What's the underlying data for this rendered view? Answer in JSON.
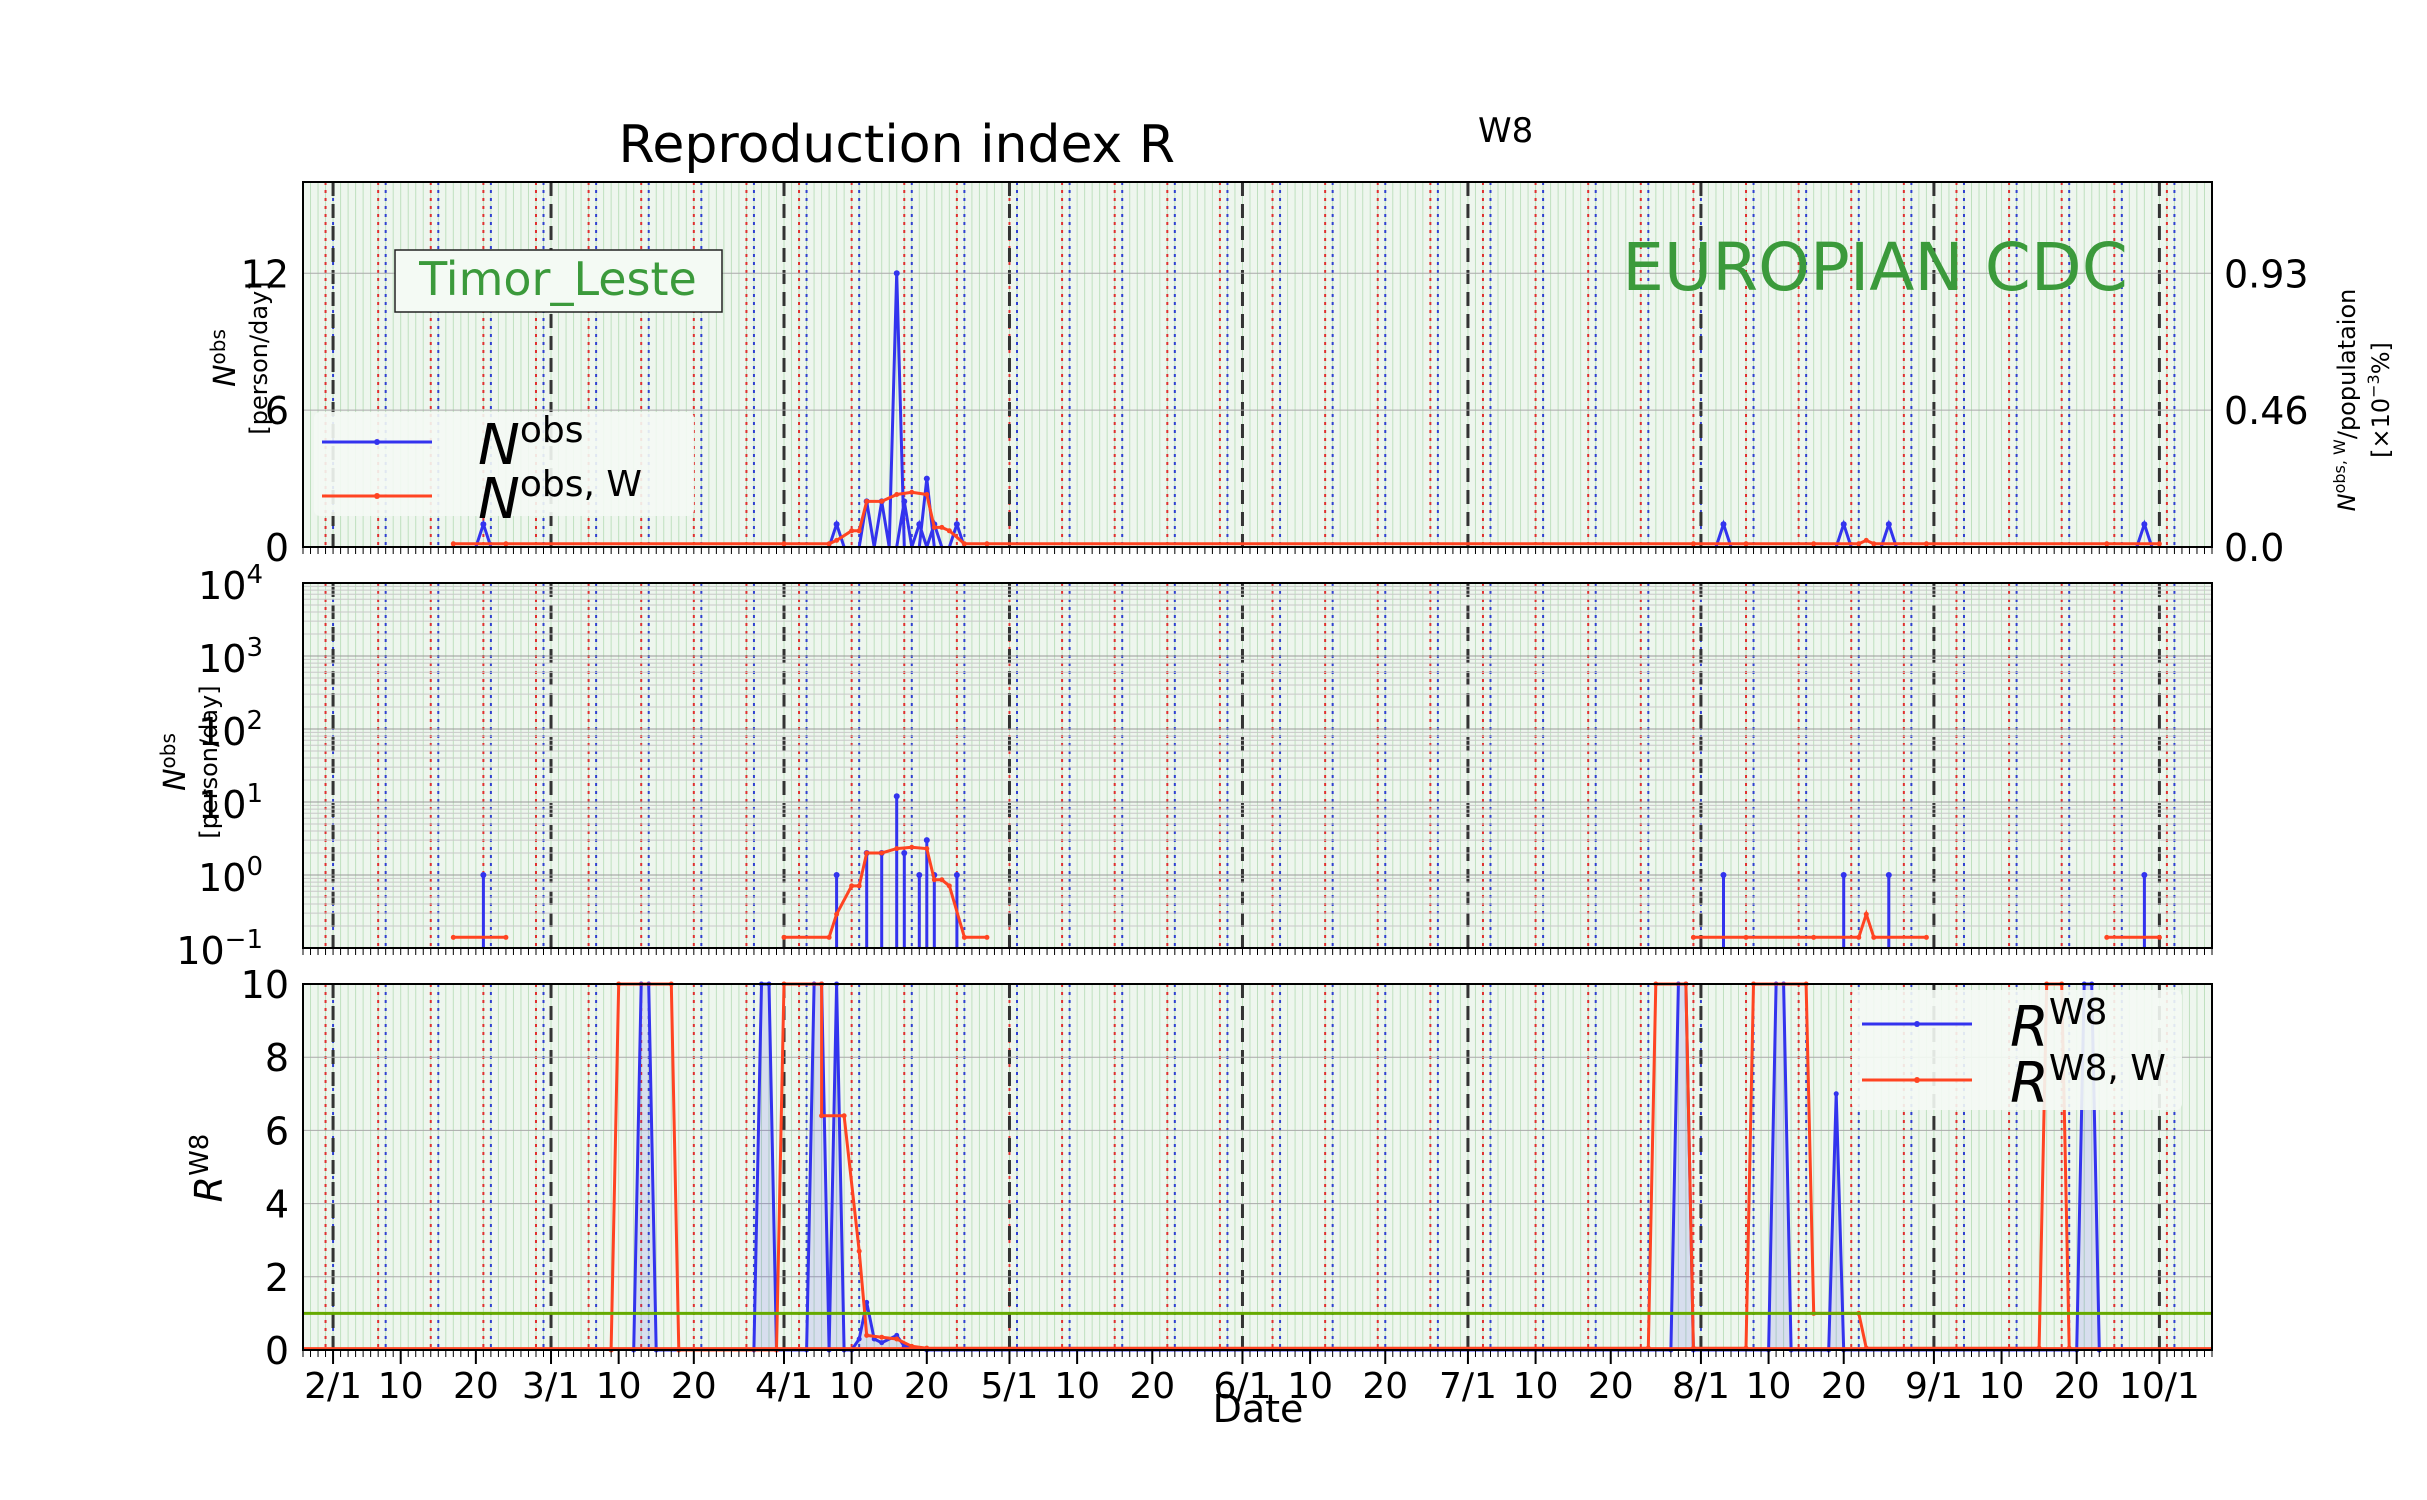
{
  "chart_data": {
    "type": "line",
    "title": "Reproduction index R",
    "title_sup": "W8",
    "xlabel": "Date",
    "x_tick_labels": [
      "2/1",
      "10",
      "20",
      "3/1",
      "10",
      "20",
      "4/1",
      "10",
      "20",
      "5/1",
      "10",
      "20",
      "6/1",
      "10",
      "20",
      "7/1",
      "10",
      "20",
      "8/1",
      "10",
      "20",
      "9/1",
      "10",
      "20",
      "10/1"
    ],
    "panels": [
      {
        "id": "linear",
        "ylabel": "N",
        "ylabel_sup": "obs",
        "ylabel_unit": "[person/day]",
        "ylim": [
          0,
          16
        ],
        "yticks": [
          "0",
          "6",
          "12"
        ],
        "right_axis_label": "N",
        "right_axis_label_sup": "obs, W",
        "right_axis_label_rest": "/populataion",
        "right_axis_unit": "[×10",
        "right_axis_unit_sup": "−3",
        "right_axis_unit_end": "%]",
        "right_yticks": [
          "0.0",
          "0.46",
          "0.93"
        ],
        "country_label": "Timor_Leste",
        "source_label": "EUROPIAN CDC",
        "legend": [
          {
            "base": "N",
            "sup": "obs",
            "color": "#3333ee"
          },
          {
            "base": "N",
            "sup": "obs, W",
            "color": "#ff4422"
          }
        ]
      },
      {
        "id": "log",
        "ylabel": "N",
        "ylabel_sup": "obs",
        "ylabel_unit": "[person/day]",
        "yscale": "log",
        "ylim": [
          0.1,
          10000
        ],
        "yticks": [
          {
            "base": "10",
            "sup": "−1"
          },
          {
            "base": "10",
            "sup": "0"
          },
          {
            "base": "10",
            "sup": "1"
          },
          {
            "base": "10",
            "sup": "2"
          },
          {
            "base": "10",
            "sup": "3"
          },
          {
            "base": "10",
            "sup": "4"
          }
        ]
      },
      {
        "id": "R",
        "ylabel": "R",
        "ylabel_sup": "W8",
        "ylim": [
          0,
          10
        ],
        "yticks": [
          "0",
          "2",
          "4",
          "6",
          "8",
          "10"
        ],
        "reference_line": 1,
        "legend": [
          {
            "base": "R",
            "sup": "W8",
            "color": "#3333ee"
          },
          {
            "base": "R",
            "sup": "W8, W",
            "color": "#ff4422"
          }
        ]
      }
    ],
    "series": [
      {
        "name": "N obs",
        "color": "#3333ee",
        "points": [
          [
            "2020-02-21",
            1
          ],
          [
            "2020-04-08",
            1
          ],
          [
            "2020-04-12",
            2
          ],
          [
            "2020-04-14",
            2
          ],
          [
            "2020-04-16",
            12
          ],
          [
            "2020-04-17",
            2
          ],
          [
            "2020-04-19",
            1
          ],
          [
            "2020-04-20",
            3
          ],
          [
            "2020-04-21",
            1
          ],
          [
            "2020-04-24",
            1
          ],
          [
            "2020-08-04",
            1
          ],
          [
            "2020-08-20",
            1
          ],
          [
            "2020-08-26",
            1
          ],
          [
            "2020-09-29",
            1
          ]
        ]
      },
      {
        "name": "N obs, W",
        "color": "#ff4422",
        "points": [
          [
            "2020-02-17",
            0.14
          ],
          [
            "2020-02-24",
            0.14
          ],
          [
            "2020-04-01",
            0.14
          ],
          [
            "2020-04-07",
            0.14
          ],
          [
            "2020-04-08",
            0.29
          ],
          [
            "2020-04-10",
            0.71
          ],
          [
            "2020-04-11",
            0.71
          ],
          [
            "2020-04-12",
            2.0
          ],
          [
            "2020-04-14",
            2.0
          ],
          [
            "2020-04-16",
            2.3
          ],
          [
            "2020-04-18",
            2.4
          ],
          [
            "2020-04-20",
            2.3
          ],
          [
            "2020-04-21",
            0.86
          ],
          [
            "2020-04-22",
            0.86
          ],
          [
            "2020-04-23",
            0.71
          ],
          [
            "2020-04-25",
            0.14
          ],
          [
            "2020-04-28",
            0.14
          ],
          [
            "2020-07-31",
            0.14
          ],
          [
            "2020-08-07",
            0.14
          ],
          [
            "2020-08-16",
            0.14
          ],
          [
            "2020-08-22",
            0.14
          ],
          [
            "2020-08-23",
            0.29
          ],
          [
            "2020-08-24",
            0.14
          ],
          [
            "2020-08-31",
            0.14
          ],
          [
            "2020-09-24",
            0.14
          ],
          [
            "2020-10-01",
            0.14
          ]
        ]
      },
      {
        "name": "R W8",
        "color": "#3333ee",
        "points": [
          [
            "2020-03-12",
            0
          ],
          [
            "2020-03-13",
            10
          ],
          [
            "2020-03-14",
            10
          ],
          [
            "2020-03-15",
            0
          ],
          [
            "2020-03-28",
            0
          ],
          [
            "2020-03-29",
            10
          ],
          [
            "2020-03-30",
            10
          ],
          [
            "2020-03-31",
            0
          ],
          [
            "2020-04-04",
            0
          ],
          [
            "2020-04-05",
            10
          ],
          [
            "2020-04-06",
            10
          ],
          [
            "2020-04-07",
            0
          ],
          [
            "2020-04-08",
            10
          ],
          [
            "2020-04-09",
            0
          ],
          [
            "2020-04-10",
            0
          ],
          [
            "2020-04-11",
            0.3
          ],
          [
            "2020-04-12",
            1.3
          ],
          [
            "2020-04-13",
            0.3
          ],
          [
            "2020-04-14",
            0.2
          ],
          [
            "2020-04-16",
            0.4
          ],
          [
            "2020-04-17",
            0.1
          ],
          [
            "2020-04-20",
            0
          ],
          [
            "2020-07-28",
            0
          ],
          [
            "2020-07-29",
            10
          ],
          [
            "2020-07-30",
            10
          ],
          [
            "2020-07-31",
            0
          ],
          [
            "2020-08-10",
            0
          ],
          [
            "2020-08-11",
            10
          ],
          [
            "2020-08-12",
            10
          ],
          [
            "2020-08-13",
            0
          ],
          [
            "2020-08-18",
            0
          ],
          [
            "2020-08-19",
            7
          ],
          [
            "2020-08-20",
            0
          ],
          [
            "2020-09-20",
            0
          ],
          [
            "2020-09-21",
            10
          ],
          [
            "2020-09-22",
            10
          ],
          [
            "2020-09-23",
            0
          ]
        ]
      },
      {
        "name": "R W8, W",
        "color": "#ff4422",
        "points": [
          [
            "2020-03-09",
            0
          ],
          [
            "2020-03-10",
            10
          ],
          [
            "2020-03-17",
            10
          ],
          [
            "2020-03-18",
            0
          ],
          [
            "2020-03-31",
            0
          ],
          [
            "2020-04-01",
            10
          ],
          [
            "2020-04-06",
            10
          ],
          [
            "2020-04-06",
            6.4
          ],
          [
            "2020-04-09",
            6.4
          ],
          [
            "2020-04-11",
            2.7
          ],
          [
            "2020-04-12",
            0.4
          ],
          [
            "2020-04-14",
            0.35
          ],
          [
            "2020-04-16",
            0.3
          ],
          [
            "2020-04-18",
            0.1
          ],
          [
            "2020-04-20",
            0.05
          ],
          [
            "2020-07-25",
            0.05
          ],
          [
            "2020-07-26",
            10
          ],
          [
            "2020-07-30",
            10
          ],
          [
            "2020-07-31",
            0.05
          ],
          [
            "2020-08-07",
            0.05
          ],
          [
            "2020-08-08",
            10
          ],
          [
            "2020-08-15",
            10
          ],
          [
            "2020-08-16",
            1
          ],
          [
            "2020-08-22",
            1
          ],
          [
            "2020-08-23",
            0.05
          ],
          [
            "2020-09-15",
            0.05
          ],
          [
            "2020-09-16",
            10
          ],
          [
            "2020-09-18",
            10
          ],
          [
            "2020-09-19",
            0.05
          ]
        ]
      }
    ],
    "grid": true,
    "legend_placement": [
      "left",
      "top-right"
    ],
    "colors": {
      "reference": "#66aa00",
      "annotation": "#3b9a3b",
      "panel_bg": "#eef6ee"
    }
  }
}
